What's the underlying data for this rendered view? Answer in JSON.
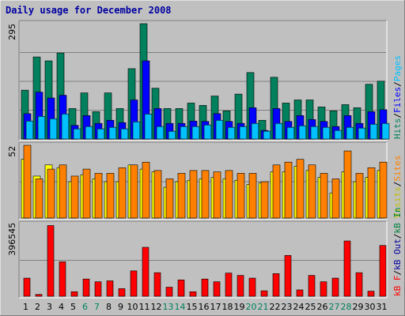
{
  "title": "Daily usage for December 2008",
  "colors": {
    "background": "#c0c0c0",
    "hits": "#00805c",
    "files": "#0000ff",
    "pages": "#00c0ff",
    "visits": "#ffff00",
    "sites": "#ff8000",
    "kb_in": "#008040",
    "kb_out": "#0000a0",
    "kb_f": "#ff0000",
    "weekend_label": "#00805c",
    "weekday_label": "#000000"
  },
  "days": [
    "1",
    "2",
    "3",
    "4",
    "5",
    "6",
    "7",
    "8",
    "9",
    "10",
    "11",
    "12",
    "13",
    "14",
    "15",
    "16",
    "17",
    "18",
    "19",
    "20",
    "21",
    "22",
    "23",
    "24",
    "25",
    "26",
    "27",
    "28",
    "29",
    "30",
    "31"
  ],
  "weekend_days": [
    "6",
    "7",
    "13",
    "14",
    "20",
    "21",
    "27",
    "28"
  ],
  "chart_data": [
    {
      "type": "bar",
      "name": "hits-files-pages",
      "ymax_label": "295",
      "ylim": [
        0,
        295
      ],
      "right_labels": [
        {
          "text": "Hits",
          "color": "#00805c"
        },
        {
          "text": "/",
          "color": "#000000"
        },
        {
          "text": "Files",
          "color": "#0000ff"
        },
        {
          "text": "/",
          "color": "#000000"
        },
        {
          "text": "Pages",
          "color": "#00c0ff"
        }
      ],
      "series": [
        {
          "name": "Hits",
          "color": "#00805c",
          "values": [
            125,
            210,
            200,
            220,
            78,
            118,
            70,
            118,
            78,
            180,
            295,
            130,
            78,
            78,
            92,
            86,
            110,
            72,
            115,
            170,
            48,
            158,
            92,
            100,
            100,
            82,
            72,
            88,
            80,
            140,
            148
          ]
        },
        {
          "name": "Files",
          "color": "#0000ff",
          "values": [
            65,
            120,
            105,
            112,
            35,
            60,
            40,
            48,
            42,
            100,
            200,
            78,
            40,
            40,
            46,
            45,
            65,
            45,
            40,
            80,
            22,
            78,
            45,
            60,
            50,
            45,
            32,
            60,
            40,
            70,
            75
          ]
        },
        {
          "name": "Pages",
          "color": "#00c0ff",
          "values": [
            46,
            58,
            52,
            64,
            26,
            32,
            26,
            30,
            26,
            44,
            64,
            32,
            20,
            32,
            32,
            36,
            48,
            30,
            32,
            40,
            20,
            40,
            30,
            34,
            32,
            30,
            22,
            30,
            28,
            38,
            40
          ]
        }
      ]
    },
    {
      "type": "bar",
      "name": "visits-sites",
      "ymax_label": "52",
      "ylim": [
        0,
        52
      ],
      "right_labels": [
        {
          "text": "Visits",
          "color": "#c0c000"
        },
        {
          "text": "/",
          "color": "#000000"
        },
        {
          "text": "Sites",
          "color": "#ff8000"
        }
      ],
      "series": [
        {
          "name": "Visits",
          "color": "#ffff00",
          "values": [
            42,
            30,
            38,
            36,
            26,
            31,
            28,
            26,
            26,
            38,
            35,
            33,
            22,
            26,
            27,
            28,
            29,
            28,
            27,
            24,
            25,
            33,
            33,
            37,
            34,
            29,
            18,
            33,
            26,
            29,
            34
          ]
        },
        {
          "name": "Sites",
          "color": "#ff8000",
          "values": [
            52,
            28,
            35,
            38,
            30,
            35,
            32,
            32,
            36,
            38,
            40,
            34,
            28,
            32,
            34,
            34,
            33,
            34,
            32,
            32,
            26,
            38,
            40,
            42,
            38,
            32,
            28,
            48,
            32,
            36,
            40
          ]
        }
      ]
    },
    {
      "type": "bar",
      "name": "kbytes",
      "ymax_label": "396545",
      "ylim": [
        0,
        396545
      ],
      "right_labels": [
        {
          "text": "kB F",
          "color": "#ff0000"
        },
        {
          "text": "/",
          "color": "#000000"
        },
        {
          "text": "kB Out",
          "color": "#0000a0"
        },
        {
          "text": "/",
          "color": "#000000"
        },
        {
          "text": "kB In",
          "color": "#008040"
        }
      ],
      "series": [
        {
          "name": "kB F",
          "color": "#ff0000",
          "values": [
            100000,
            10000,
            390000,
            190000,
            25000,
            95000,
            80000,
            85000,
            42000,
            140000,
            270000,
            130000,
            50000,
            90000,
            25000,
            95000,
            80000,
            128000,
            115000,
            100000,
            30000,
            125000,
            225000,
            35000,
            115000,
            80000,
            100000,
            305000,
            130000,
            28000,
            280000
          ]
        }
      ]
    }
  ]
}
